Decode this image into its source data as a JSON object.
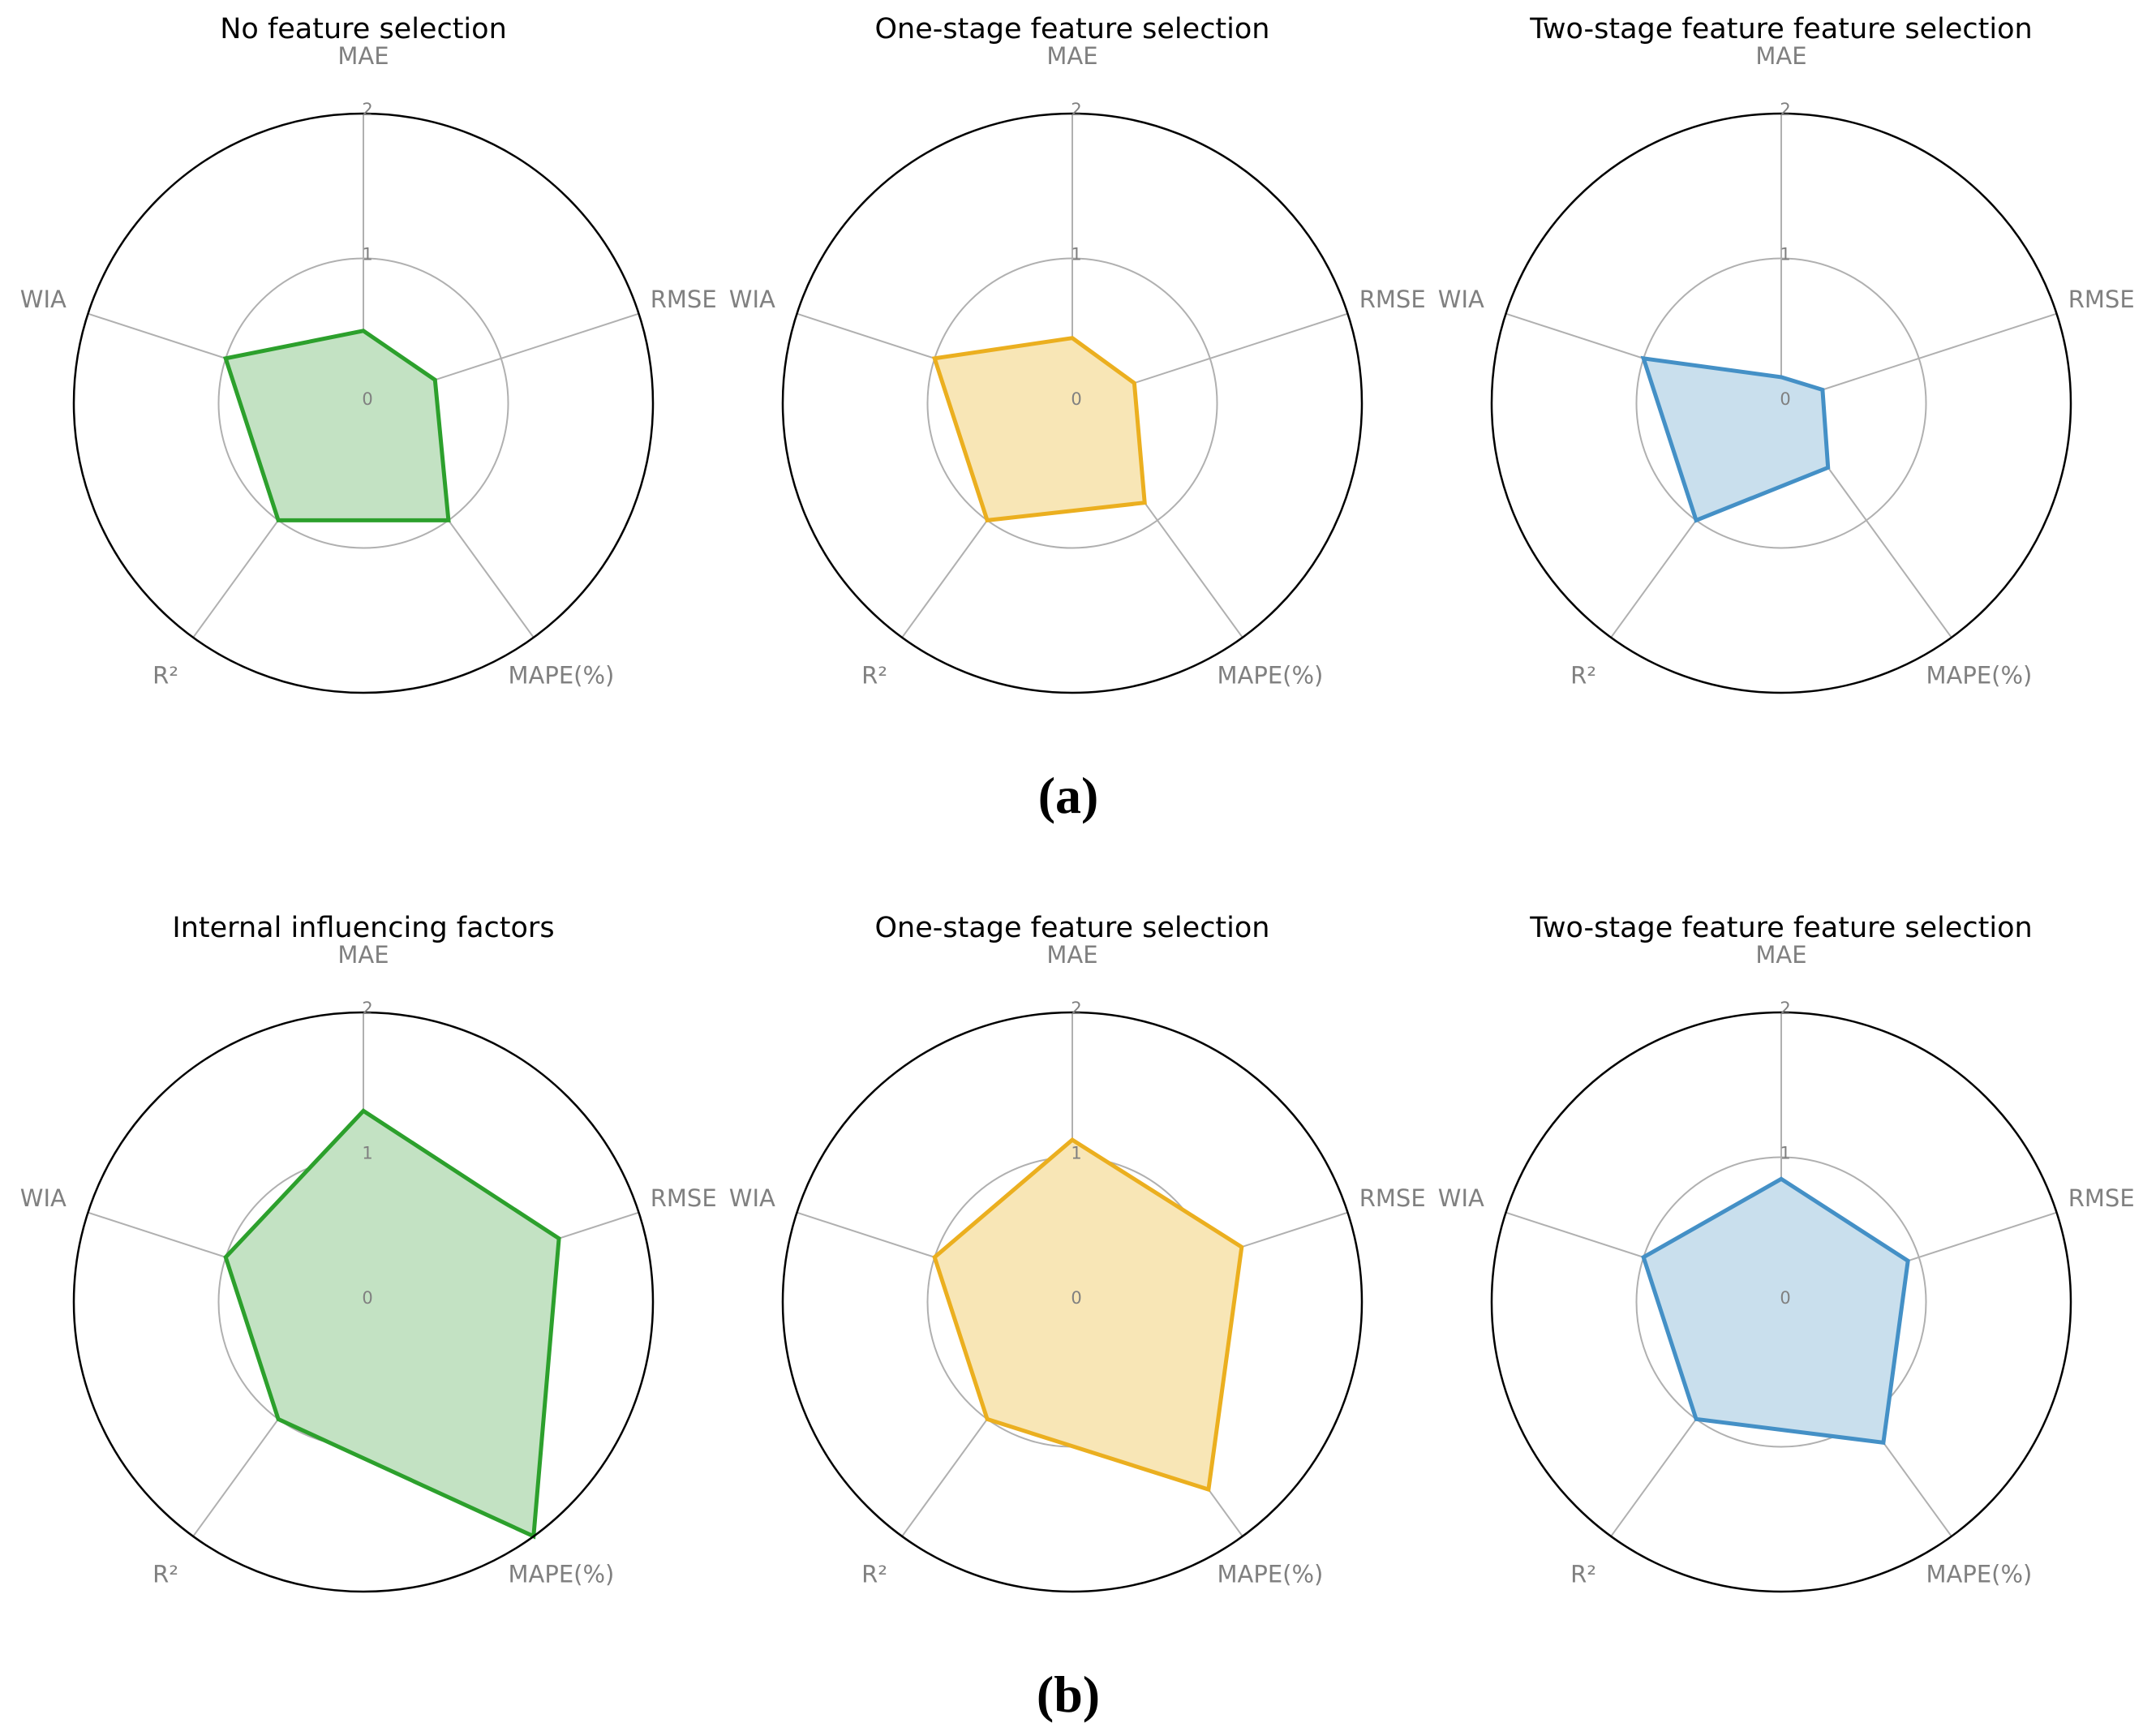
{
  "figure": {
    "panel_labels": [
      "(a)",
      "(b)"
    ]
  },
  "chart_data": [
    {
      "type": "radar",
      "title": "No feature selection",
      "panel": "(a)",
      "axes": [
        "MAE",
        "RMSE",
        "MAPE(%)",
        "R²",
        "WIA"
      ],
      "rlim": [
        0,
        2
      ],
      "rticks": [
        "0",
        "1",
        "2"
      ],
      "values": [
        0.5,
        0.52,
        1.0,
        1.0,
        1.0
      ],
      "color": "#2ca02c",
      "fill": "#c3e2c3"
    },
    {
      "type": "radar",
      "title": "One-stage feature selection",
      "panel": "(a)",
      "axes": [
        "MAE",
        "RMSE",
        "MAPE(%)",
        "R²",
        "WIA"
      ],
      "rlim": [
        0,
        2
      ],
      "rticks": [
        "0",
        "1",
        "2"
      ],
      "values": [
        0.45,
        0.45,
        0.85,
        1.0,
        1.0
      ],
      "color": "#ebaf1f",
      "fill": "#f8e6b6"
    },
    {
      "type": "radar",
      "title": "Two-stage feature feature selection",
      "panel": "(a)",
      "axes": [
        "MAE",
        "RMSE",
        "MAPE(%)",
        "R²",
        "WIA"
      ],
      "rlim": [
        0,
        2
      ],
      "rticks": [
        "0",
        "1",
        "2"
      ],
      "values": [
        0.18,
        0.3,
        0.55,
        1.0,
        1.0
      ],
      "color": "#4490c6",
      "fill": "#c9dfed"
    },
    {
      "type": "radar",
      "title": "Internal influencing factors",
      "panel": "(b)",
      "axes": [
        "MAE",
        "RMSE",
        "MAPE(%)",
        "R²",
        "WIA"
      ],
      "rlim": [
        0,
        2
      ],
      "rticks": [
        "0",
        "1",
        "2"
      ],
      "values": [
        1.32,
        1.42,
        2.0,
        1.0,
        1.0
      ],
      "color": "#2ca02c",
      "fill": "#c3e2c3"
    },
    {
      "type": "radar",
      "title": "One-stage feature selection",
      "panel": "(b)",
      "axes": [
        "MAE",
        "RMSE",
        "MAPE(%)",
        "R²",
        "WIA"
      ],
      "rlim": [
        0,
        2
      ],
      "rticks": [
        "0",
        "1",
        "2"
      ],
      "values": [
        1.12,
        1.23,
        1.6,
        1.0,
        1.0
      ],
      "color": "#ebaf1f",
      "fill": "#f8e6b6"
    },
    {
      "type": "radar",
      "title": "Two-stage feature feature selection",
      "panel": "(b)",
      "axes": [
        "MAE",
        "RMSE",
        "MAPE(%)",
        "R²",
        "WIA"
      ],
      "rlim": [
        0,
        2
      ],
      "rticks": [
        "0",
        "1",
        "2"
      ],
      "values": [
        0.85,
        0.92,
        1.2,
        1.0,
        1.0
      ],
      "color": "#4490c6",
      "fill": "#c9dfed"
    }
  ]
}
